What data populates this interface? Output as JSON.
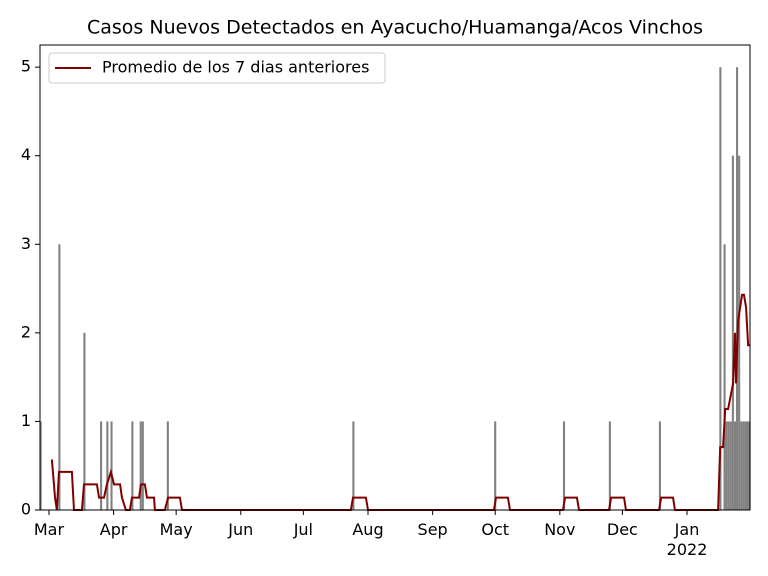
{
  "chart_data": {
    "type": "bar_line",
    "title": "Casos Nuevos Detectados en Ayacucho/Huamanga/Acos Vinchos",
    "xlim": [
      -4.3,
      336.2
    ],
    "ylim": [
      0,
      5.25
    ],
    "yticks": [
      0,
      1,
      2,
      3,
      4,
      5
    ],
    "xticks": [
      {
        "value": 0,
        "label": "Mar"
      },
      {
        "value": 31,
        "label": "Apr"
      },
      {
        "value": 61,
        "label": "May"
      },
      {
        "value": 92,
        "label": "Jun"
      },
      {
        "value": 122,
        "label": "Jul"
      },
      {
        "value": 153,
        "label": "Aug"
      },
      {
        "value": 184,
        "label": "Sep"
      },
      {
        "value": 214,
        "label": "Oct"
      },
      {
        "value": 245,
        "label": "Nov"
      },
      {
        "value": 275,
        "label": "Dec"
      },
      {
        "value": 306,
        "label": "Jan\n2022"
      }
    ],
    "legend": "upper left",
    "bars": {
      "color": "#808080",
      "x": [
        -4,
        5,
        17,
        25,
        28,
        30,
        40,
        44,
        45,
        57,
        146,
        214,
        247,
        269,
        293,
        322,
        324,
        325,
        326,
        327,
        328,
        329,
        330,
        331,
        332,
        333,
        334,
        335,
        336
      ],
      "values": [
        1,
        3,
        2,
        1,
        1,
        1,
        1,
        1,
        1,
        1,
        1,
        1,
        1,
        1,
        1,
        5,
        3,
        1,
        1,
        1,
        4,
        1,
        5,
        4,
        1,
        1,
        1,
        1,
        1
      ]
    },
    "series": [
      {
        "name": "Promedio de los 7 dias anteriores",
        "color": "#800000",
        "x": [
          1.4,
          2.9,
          3.8,
          4.8,
          11.0,
          12.0,
          15.8,
          16.8,
          23.0,
          24.0,
          26.4,
          27.8,
          29.7,
          31.2,
          34.1,
          35.0,
          36.9,
          38.8,
          39.8,
          43.2,
          44.1,
          46.0,
          47.0,
          50.4,
          50.8,
          55.6,
          57.1,
          62.8,
          63.8,
          144.8,
          145.8,
          152.0,
          153.0,
          213.4,
          214.4,
          220.1,
          221.1,
          246.5,
          247.5,
          253.2,
          254.2,
          268.6,
          269.6,
          275.8,
          276.7,
          292.6,
          293.6,
          299.3,
          300.2,
          320.9,
          321.9,
          323.3,
          324.3,
          325.7,
          328.1,
          329.0,
          329.5,
          330.5,
          332.4,
          333.3,
          334.3,
          335.3,
          336.2
        ],
        "values": [
          0.57,
          0.14,
          0,
          0.43,
          0.43,
          0,
          0,
          0.29,
          0.29,
          0.14,
          0.14,
          0.29,
          0.43,
          0.29,
          0.29,
          0.14,
          0,
          0,
          0.14,
          0.14,
          0.29,
          0.29,
          0.14,
          0.14,
          0,
          0,
          0.14,
          0.14,
          0,
          0,
          0.14,
          0.14,
          0,
          0,
          0.14,
          0.14,
          0,
          0,
          0.14,
          0.14,
          0,
          0,
          0.14,
          0.14,
          0,
          0,
          0.14,
          0.14,
          0,
          0,
          0.71,
          0.71,
          1.14,
          1.14,
          1.43,
          2.0,
          1.43,
          2.14,
          2.43,
          2.43,
          2.29,
          1.86,
          1.86
        ]
      }
    ]
  }
}
